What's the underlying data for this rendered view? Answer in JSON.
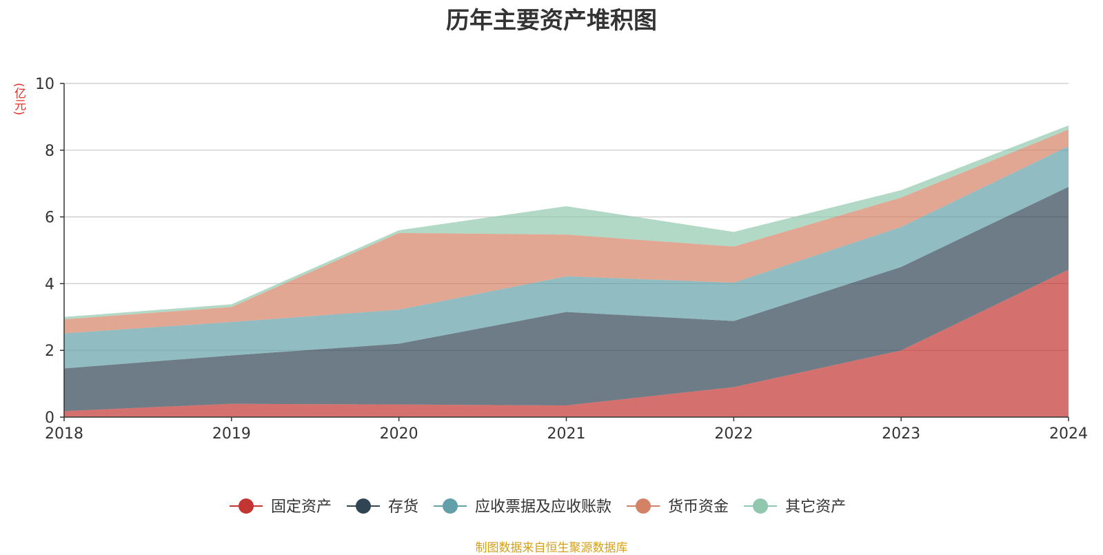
{
  "chart_data": {
    "type": "area",
    "stacked": true,
    "title": "历年主要资产堆积图",
    "y_unit": "(亿元)",
    "ylim": [
      0,
      10
    ],
    "yticks": [
      0,
      2,
      4,
      6,
      8,
      10
    ],
    "categories": [
      "2018",
      "2019",
      "2020",
      "2021",
      "2022",
      "2023",
      "2024"
    ],
    "grid": true,
    "legend_position": "bottom",
    "series": [
      {
        "name": "固定资产",
        "color": "#c23531",
        "values": [
          0.18,
          0.4,
          0.38,
          0.35,
          0.9,
          2.0,
          4.42
        ]
      },
      {
        "name": "存货",
        "color": "#2f4554",
        "values": [
          1.28,
          1.45,
          1.82,
          2.8,
          1.98,
          2.5,
          2.48
        ]
      },
      {
        "name": "应收票据及应收账款",
        "color": "#61a0a8",
        "values": [
          1.05,
          1.0,
          1.02,
          1.07,
          1.15,
          1.2,
          1.22
        ]
      },
      {
        "name": "货币资金",
        "color": "#d48265",
        "values": [
          0.42,
          0.45,
          2.3,
          1.25,
          1.08,
          0.88,
          0.5
        ]
      },
      {
        "name": "其它资产",
        "color": "#91c7ae",
        "values": [
          0.07,
          0.08,
          0.08,
          0.85,
          0.44,
          0.22,
          0.12
        ]
      }
    ],
    "source": "制图数据来自恒生聚源数据库"
  }
}
